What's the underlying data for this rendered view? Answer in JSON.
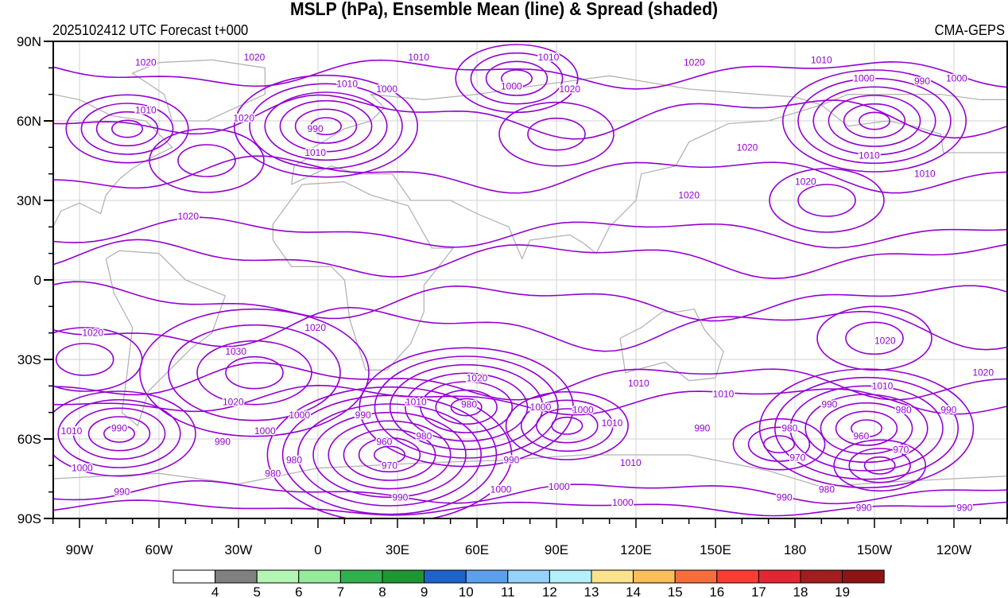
{
  "title": "MSLP (hPa), Ensemble Mean (line) & Spread (shaded)",
  "subtitle": "2025102412 UTC Forecast t+000",
  "model": "CMA-GEPS",
  "chart_data": {
    "type": "contour-map",
    "lon_range": [
      -100,
      260
    ],
    "lat_range": [
      -90,
      90
    ],
    "contour_color": "#9400d3",
    "contour_interval_hpa": 5,
    "lat_ticks": [
      {
        "v": 90,
        "t": "90N"
      },
      {
        "v": 60,
        "t": "60N"
      },
      {
        "v": 30,
        "t": "30N"
      },
      {
        "v": 0,
        "t": "0"
      },
      {
        "v": -30,
        "t": "30S"
      },
      {
        "v": -60,
        "t": "60S"
      },
      {
        "v": -90,
        "t": "90S"
      }
    ],
    "lon_ticks": [
      {
        "v": -90,
        "t": "90W"
      },
      {
        "v": -60,
        "t": "60W"
      },
      {
        "v": -30,
        "t": "30W"
      },
      {
        "v": 0,
        "t": "0"
      },
      {
        "v": 30,
        "t": "30E"
      },
      {
        "v": 60,
        "t": "60E"
      },
      {
        "v": 90,
        "t": "90E"
      },
      {
        "v": 120,
        "t": "120E"
      },
      {
        "v": 150,
        "t": "150E"
      },
      {
        "v": 180,
        "t": "180"
      },
      {
        "v": 210,
        "t": "150W"
      },
      {
        "v": 240,
        "t": "120W"
      }
    ],
    "centers": [
      {
        "lon": 27,
        "lat": -66,
        "levels": [
          965,
          970,
          975,
          980,
          985,
          990,
          995,
          1000
        ],
        "type": "low"
      },
      {
        "lon": 56,
        "lat": -48,
        "levels": [
          975,
          980,
          985,
          990,
          995,
          1000,
          1005
        ],
        "type": "low"
      },
      {
        "lon": 207,
        "lat": -56,
        "levels": [
          960,
          965,
          970,
          975,
          980,
          985,
          990
        ],
        "type": "low"
      },
      {
        "lon": 212,
        "lat": -70,
        "levels": [
          965,
          970,
          975
        ],
        "type": "low"
      },
      {
        "lon": 174,
        "lat": -62,
        "levels": [
          975,
          980,
          985
        ],
        "type": "low"
      },
      {
        "lon": -75,
        "lat": -58,
        "levels": [
          985,
          990,
          995,
          1000,
          1005
        ],
        "type": "low"
      },
      {
        "lon": 94,
        "lat": -55,
        "levels": [
          990,
          995,
          1000,
          1005
        ],
        "type": "low"
      },
      {
        "lon": -24,
        "lat": -35,
        "levels": [
          1030,
          1025,
          1020,
          1015
        ],
        "type": "high"
      },
      {
        "lon": 75,
        "lat": 76,
        "levels": [
          995,
          1000,
          1005,
          1010
        ],
        "type": "low"
      },
      {
        "lon": 3,
        "lat": 58,
        "levels": [
          985,
          990,
          995,
          1000,
          1005,
          1010
        ],
        "type": "low"
      },
      {
        "lon": -72,
        "lat": 57,
        "levels": [
          1000,
          1005,
          1010,
          1015
        ],
        "type": "low"
      },
      {
        "lon": 210,
        "lat": 60,
        "levels": [
          985,
          990,
          995,
          1000,
          1005,
          1010
        ],
        "type": "low"
      },
      {
        "lon": 90,
        "lat": 55,
        "levels": [
          1025,
          1020
        ],
        "type": "high"
      },
      {
        "lon": 192,
        "lat": 30,
        "levels": [
          1025,
          1020
        ],
        "type": "high"
      },
      {
        "lon": -42,
        "lat": 45,
        "levels": [
          1025,
          1020
        ],
        "type": "high"
      },
      {
        "lon": 210,
        "lat": -22,
        "levels": [
          1025,
          1020
        ],
        "type": "high"
      },
      {
        "lon": -88,
        "lat": -30,
        "levels": [
          1025,
          1020
        ],
        "type": "high"
      }
    ],
    "contour_labels": [
      {
        "lon": -65,
        "lat": 82,
        "t": "1020"
      },
      {
        "lon": -24,
        "lat": 84,
        "t": "1020"
      },
      {
        "lon": 38,
        "lat": 84,
        "t": "1010"
      },
      {
        "lon": 87,
        "lat": 84,
        "t": "1010"
      },
      {
        "lon": 73,
        "lat": 73,
        "t": "1000"
      },
      {
        "lon": 95,
        "lat": 72,
        "t": "1020"
      },
      {
        "lon": 142,
        "lat": 82,
        "t": "1020"
      },
      {
        "lon": 190,
        "lat": 83,
        "t": "1010"
      },
      {
        "lon": 206,
        "lat": 76,
        "t": "1000"
      },
      {
        "lon": 228,
        "lat": 75,
        "t": "990"
      },
      {
        "lon": 241,
        "lat": 76,
        "t": "1000"
      },
      {
        "lon": 11,
        "lat": 74,
        "t": "1010"
      },
      {
        "lon": 26,
        "lat": 72,
        "t": "1000"
      },
      {
        "lon": -1,
        "lat": 57,
        "t": "990"
      },
      {
        "lon": -1,
        "lat": 48,
        "t": "1010"
      },
      {
        "lon": -65,
        "lat": 64,
        "t": "1010"
      },
      {
        "lon": -28,
        "lat": 61,
        "t": "1020"
      },
      {
        "lon": -49,
        "lat": 24,
        "t": "1020"
      },
      {
        "lon": 208,
        "lat": 47,
        "t": "1010"
      },
      {
        "lon": 162,
        "lat": 50,
        "t": "1020"
      },
      {
        "lon": 140,
        "lat": 32,
        "t": "1020"
      },
      {
        "lon": 184,
        "lat": 37,
        "t": "1020"
      },
      {
        "lon": 229,
        "lat": 40,
        "t": "1010"
      },
      {
        "lon": -1,
        "lat": -18,
        "t": "1020"
      },
      {
        "lon": -85,
        "lat": -20,
        "t": "1020"
      },
      {
        "lon": -31,
        "lat": -27,
        "t": "1030"
      },
      {
        "lon": -32,
        "lat": -46,
        "t": "1020"
      },
      {
        "lon": -7,
        "lat": -51,
        "t": "1000"
      },
      {
        "lon": 17,
        "lat": -51,
        "t": "990"
      },
      {
        "lon": -20,
        "lat": -57,
        "t": "1000"
      },
      {
        "lon": -36,
        "lat": -61,
        "t": "990"
      },
      {
        "lon": -75,
        "lat": -56,
        "t": "990"
      },
      {
        "lon": -93,
        "lat": -57,
        "t": "1010"
      },
      {
        "lon": -89,
        "lat": -71,
        "t": "1000"
      },
      {
        "lon": -9,
        "lat": -68,
        "t": "980"
      },
      {
        "lon": 25,
        "lat": -61,
        "t": "960"
      },
      {
        "lon": 27,
        "lat": -70,
        "t": "970"
      },
      {
        "lon": 40,
        "lat": -59,
        "t": "980"
      },
      {
        "lon": 37,
        "lat": -46,
        "t": "1010"
      },
      {
        "lon": 60,
        "lat": -37,
        "t": "1020"
      },
      {
        "lon": 57,
        "lat": -47,
        "t": "980"
      },
      {
        "lon": 84,
        "lat": -48,
        "t": "1000"
      },
      {
        "lon": 100,
        "lat": -49,
        "t": "1000"
      },
      {
        "lon": 73,
        "lat": -68,
        "t": "990"
      },
      {
        "lon": 111,
        "lat": -54,
        "t": "1010"
      },
      {
        "lon": 118,
        "lat": -69,
        "t": "1010"
      },
      {
        "lon": 91,
        "lat": -78,
        "t": "1000"
      },
      {
        "lon": 115,
        "lat": -84,
        "t": "1000"
      },
      {
        "lon": 31,
        "lat": -82,
        "t": "990"
      },
      {
        "lon": 69,
        "lat": -79,
        "t": "1000"
      },
      {
        "lon": -74,
        "lat": -80,
        "t": "990"
      },
      {
        "lon": -17,
        "lat": -73,
        "t": "980"
      },
      {
        "lon": 121,
        "lat": -39,
        "t": "1010"
      },
      {
        "lon": 153,
        "lat": -43,
        "t": "1010"
      },
      {
        "lon": 213,
        "lat": -40,
        "t": "1010"
      },
      {
        "lon": 214,
        "lat": -23,
        "t": "1020"
      },
      {
        "lon": 251,
        "lat": -35,
        "t": "1020"
      },
      {
        "lon": 221,
        "lat": -49,
        "t": "980"
      },
      {
        "lon": 193,
        "lat": -47,
        "t": "990"
      },
      {
        "lon": 238,
        "lat": -49,
        "t": "990"
      },
      {
        "lon": 145,
        "lat": -56,
        "t": "990"
      },
      {
        "lon": 178,
        "lat": -56,
        "t": "980"
      },
      {
        "lon": 205,
        "lat": -59,
        "t": "960"
      },
      {
        "lon": 181,
        "lat": -67,
        "t": "970"
      },
      {
        "lon": 220,
        "lat": -64,
        "t": "970"
      },
      {
        "lon": 192,
        "lat": -79,
        "t": "980"
      },
      {
        "lon": 176,
        "lat": -82,
        "t": "990"
      },
      {
        "lon": 206,
        "lat": -86,
        "t": "990"
      },
      {
        "lon": 244,
        "lat": -86,
        "t": "990"
      }
    ],
    "colorbar": {
      "labels": [
        "4",
        "5",
        "6",
        "7",
        "8",
        "9",
        "10",
        "11",
        "12",
        "13",
        "14",
        "15",
        "16",
        "17",
        "18",
        "19"
      ],
      "colors": [
        "#ffffff",
        "#808080",
        "#b4f5b4",
        "#96eb9b",
        "#32b050",
        "#1e9632",
        "#1e64c8",
        "#5aa0ec",
        "#96d2fa",
        "#b4f0fa",
        "#fae38c",
        "#fabe5a",
        "#f56e3c",
        "#fa3c32",
        "#e12832",
        "#a01e1e",
        "#8c1414"
      ]
    }
  }
}
